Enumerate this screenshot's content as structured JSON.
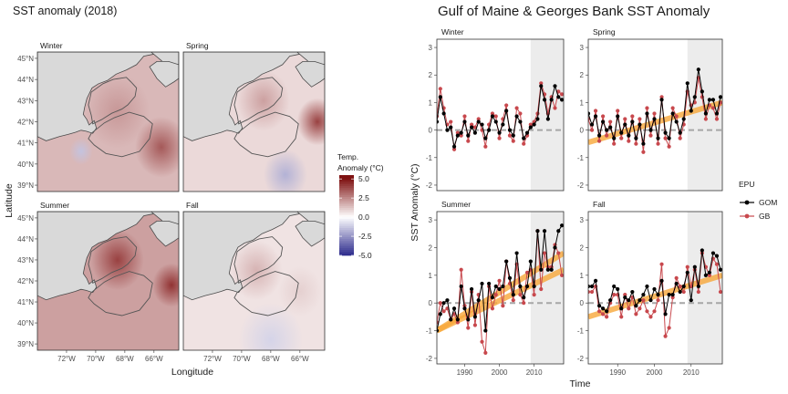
{
  "colors": {
    "gom": "#000000",
    "gb": "#c8484d",
    "trend": "#f7a83a",
    "zero_line": "#a6a6a6",
    "recent_shade": "#ececec",
    "land": "#d9d9d9",
    "coast": "#4a4a4a",
    "anom_high": "#7f1212",
    "anom_mid": "#ffffff",
    "anom_low": "#2c2a8c"
  },
  "icons": {
    "legend_key": "line-with-dot-icon"
  },
  "chart_data": [
    {
      "type": "heatmap",
      "title": "SST anomaly (2018)",
      "xlabel": "Longitude",
      "ylabel": "Latitude",
      "x_ticks": [
        "72°W",
        "70°W",
        "68°W",
        "66°W"
      ],
      "x_tick_values": [
        -72,
        -70,
        -68,
        -66
      ],
      "y_ticks": [
        "39°N",
        "40°N",
        "41°N",
        "42°N",
        "43°N",
        "44°N",
        "45°N"
      ],
      "y_tick_values": [
        39,
        40,
        41,
        42,
        43,
        44,
        45
      ],
      "xlim": [
        -74,
        -64.3
      ],
      "ylim": [
        38.7,
        45.3
      ],
      "panels": [
        {
          "name": "Winter",
          "bg": 1.5,
          "hot": [
            {
              "lon": -65.5,
              "lat": 40.8,
              "v": 3.5,
              "r": 1.8
            },
            {
              "lon": -68.5,
              "lat": 42.5,
              "v": 2.2,
              "r": 2.2
            }
          ],
          "cold": [
            {
              "lon": -71.0,
              "lat": 40.6,
              "v": -1.4,
              "r": 0.8
            }
          ]
        },
        {
          "name": "Spring",
          "bg": 0.8,
          "hot": [
            {
              "lon": -64.8,
              "lat": 42.0,
              "v": 4.0,
              "r": 1.4
            },
            {
              "lon": -68.5,
              "lat": 43.0,
              "v": 2.0,
              "r": 1.8
            }
          ],
          "cold": [
            {
              "lon": -67.0,
              "lat": 39.5,
              "v": -1.8,
              "r": 1.5
            }
          ]
        },
        {
          "name": "Summer",
          "bg": 2.0,
          "hot": [
            {
              "lon": -68.5,
              "lat": 43.0,
              "v": 4.0,
              "r": 1.8
            },
            {
              "lon": -64.8,
              "lat": 41.8,
              "v": 4.3,
              "r": 1.3
            }
          ],
          "cold": []
        },
        {
          "name": "Fall",
          "bg": 0.6,
          "hot": [
            {
              "lon": -69.0,
              "lat": 42.5,
              "v": 1.6,
              "r": 1.8
            },
            {
              "lon": -66.0,
              "lat": 41.5,
              "v": 1.0,
              "r": 1.5
            }
          ],
          "cold": [
            {
              "lon": -68.0,
              "lat": 39.2,
              "v": -1.0,
              "r": 2.2
            }
          ]
        }
      ],
      "legend": {
        "title_lines": [
          "Temp.",
          "Anomaly (°C)"
        ],
        "ticks": [
          "5.0",
          "2.5",
          "0.0",
          "-2.5",
          "-5.0"
        ],
        "tick_values": [
          5.0,
          2.5,
          0.0,
          -2.5,
          -5.0
        ],
        "range": [
          -5,
          5.5
        ],
        "placement": "right"
      }
    },
    {
      "type": "line",
      "title": "Gulf of Maine & Georges Bank SST Anomaly",
      "xlabel": "Time",
      "ylabel": "SST Anomaly (°C)",
      "xlim": [
        1982,
        2018.5
      ],
      "ylim": [
        -2.2,
        3.3
      ],
      "x_ticks": [
        "1990",
        "2000",
        "2010"
      ],
      "x_tick_values": [
        1990,
        2000,
        2010
      ],
      "y_ticks": [
        "-2",
        "-1",
        "0",
        "1",
        "2",
        "3"
      ],
      "y_tick_values": [
        -2,
        -1,
        0,
        1,
        2,
        3
      ],
      "shade_range": [
        2009,
        2018.5
      ],
      "legend": {
        "title": "EPU",
        "entries": [
          "GOM",
          "GB"
        ],
        "placement": "right"
      },
      "years": [
        1982,
        1983,
        1984,
        1985,
        1986,
        1987,
        1988,
        1989,
        1990,
        1991,
        1992,
        1993,
        1994,
        1995,
        1996,
        1997,
        1998,
        1999,
        2000,
        2001,
        2002,
        2003,
        2004,
        2005,
        2006,
        2007,
        2008,
        2009,
        2010,
        2011,
        2012,
        2013,
        2014,
        2015,
        2016,
        2017,
        2018
      ],
      "panels": [
        {
          "name": "Winter",
          "series": [
            {
              "name": "GOM",
              "values": [
                0.3,
                1.2,
                0.6,
                0.0,
                0.1,
                -0.6,
                -0.2,
                -0.1,
                0.3,
                -0.2,
                0.1,
                -0.1,
                0.3,
                0.2,
                -0.3,
                0.0,
                0.5,
                0.3,
                -0.1,
                0.2,
                0.7,
                0.0,
                -0.2,
                0.5,
                0.3,
                -0.3,
                -0.1,
                0.1,
                0.2,
                0.4,
                1.6,
                1.1,
                0.4,
                1.1,
                1.6,
                1.2,
                1.1
              ]
            },
            {
              "name": "GB",
              "values": [
                0.5,
                1.5,
                0.8,
                0.2,
                0.3,
                -0.7,
                -0.1,
                -0.2,
                0.5,
                -0.4,
                0.2,
                0.1,
                0.4,
                0.0,
                -0.6,
                0.2,
                0.6,
                0.5,
                -0.3,
                0.4,
                0.9,
                -0.2,
                -0.4,
                0.8,
                0.6,
                -0.5,
                -0.2,
                0.2,
                0.3,
                0.6,
                1.7,
                1.3,
                0.6,
                1.2,
                0.8,
                1.4,
                1.3
              ]
            }
          ],
          "trend": null
        },
        {
          "name": "Spring",
          "series": [
            {
              "name": "GOM",
              "values": [
                0.6,
                0.2,
                0.5,
                -0.2,
                0.3,
                0.0,
                0.1,
                -0.3,
                0.5,
                -0.1,
                0.2,
                -0.2,
                0.3,
                -0.3,
                0.2,
                -0.5,
                0.6,
                0.0,
                0.4,
                -0.3,
                1.1,
                -0.1,
                -0.3,
                0.6,
                0.3,
                -0.1,
                0.4,
                1.7,
                0.7,
                1.2,
                2.2,
                1.4,
                0.6,
                1.1,
                1.1,
                0.6,
                1.2
              ]
            },
            {
              "name": "GB",
              "values": [
                0.4,
                0.0,
                0.7,
                -0.4,
                0.5,
                -0.2,
                0.3,
                -0.5,
                0.7,
                -0.3,
                0.4,
                -0.4,
                0.5,
                -0.5,
                0.4,
                -0.8,
                0.8,
                -0.2,
                0.6,
                -0.5,
                1.2,
                -0.3,
                -0.6,
                0.8,
                0.5,
                -0.3,
                0.2,
                1.4,
                0.9,
                1.0,
                1.9,
                1.2,
                0.4,
                0.9,
                0.8,
                0.4,
                1.0
              ]
            }
          ],
          "trend": [
            [
              1982,
              -0.45
            ],
            [
              2018.5,
              1.0
            ]
          ]
        },
        {
          "name": "Summer",
          "series": [
            {
              "name": "GOM",
              "values": [
                -1.0,
                -0.4,
                0.0,
                0.1,
                -0.6,
                -0.2,
                -0.6,
                0.6,
                -0.2,
                -0.6,
                0.5,
                -0.5,
                0.1,
                0.7,
                -1.0,
                0.7,
                0.2,
                0.6,
                0.5,
                0.6,
                1.5,
                0.9,
                0.3,
                1.8,
                0.6,
                0.2,
                0.6,
                1.5,
                0.6,
                2.6,
                1.2,
                2.6,
                1.2,
                1.2,
                2.0,
                2.6,
                2.8
              ]
            },
            {
              "name": "GB",
              "values": [
                -0.7,
                0.0,
                -0.3,
                -0.2,
                -0.6,
                -0.4,
                -0.7,
                1.2,
                -0.1,
                -0.9,
                0.4,
                -0.8,
                0.3,
                -1.4,
                -1.8,
                0.6,
                -0.2,
                0.3,
                0.8,
                -0.1,
                1.5,
                0.7,
                0.1,
                1.4,
                0.3,
                0.0,
                1.1,
                1.2,
                0.3,
                2.6,
                0.5,
                1.8,
                1.3,
                1.3,
                2.1,
                1.8,
                1.0
              ]
            }
          ],
          "trend": [
            [
              1982,
              -1.0
            ],
            [
              2018.5,
              1.8
            ]
          ],
          "trend2": [
            [
              1982,
              -1.0
            ],
            [
              2018.5,
              1.2
            ]
          ]
        },
        {
          "name": "Fall",
          "series": [
            {
              "name": "GOM",
              "values": [
                0.6,
                0.6,
                0.8,
                -0.1,
                -0.2,
                -0.3,
                0.1,
                0.6,
                0.5,
                -0.2,
                0.2,
                0.1,
                0.4,
                -0.1,
                0.1,
                0.3,
                0.6,
                0.1,
                0.5,
                0.3,
                0.8,
                -0.4,
                0.3,
                0.3,
                0.7,
                0.4,
                0.6,
                1.1,
                0.1,
                1.3,
                0.6,
                1.9,
                1.0,
                1.1,
                1.8,
                1.7,
                1.2
              ]
            },
            {
              "name": "GB",
              "values": [
                0.4,
                0.4,
                0.6,
                -0.3,
                -0.4,
                -0.5,
                0.0,
                0.3,
                0.3,
                -0.5,
                0.3,
                -0.2,
                0.2,
                -0.4,
                -0.2,
                0.1,
                -0.3,
                -0.5,
                -0.3,
                0.1,
                1.4,
                -1.2,
                -0.9,
                0.2,
                0.9,
                0.6,
                0.4,
                1.3,
                0.6,
                1.2,
                0.4,
                1.8,
                1.3,
                1.0,
                1.6,
                1.4,
                0.4
              ]
            }
          ],
          "trend": [
            [
              1982,
              -0.5
            ],
            [
              2018.5,
              1.0
            ]
          ]
        }
      ]
    }
  ]
}
